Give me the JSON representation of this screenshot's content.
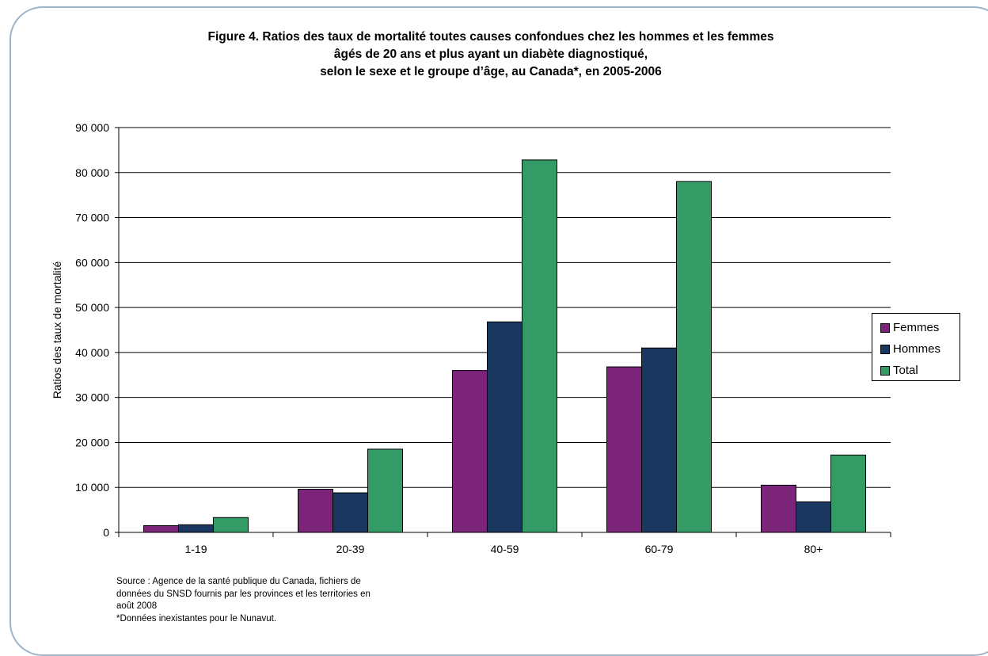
{
  "title_lines": [
    "Figure 4. Ratios des taux de mortalité toutes causes confondues chez les hommes et les femmes",
    "âgés de 20 ans et plus ayant un diabète diagnostiqué,",
    "selon le sexe et le groupe d’âge, au Canada*, en 2005-2006"
  ],
  "source_lines": [
    "Source : Agence de la santé publique du Canada, fichiers de",
    "données du SNSD fournis par les provinces et les territories en",
    "août 2008",
    " *Données inexistantes pour le Nunavut."
  ],
  "chart_data": {
    "type": "bar",
    "title": "Figure 4. Ratios des taux de mortalité toutes causes confondues chez les hommes et les femmes âgés de 20 ans et plus ayant un diabète diagnostiqué, selon le sexe et le groupe d’âge, au Canada*, en 2005-2006",
    "xlabel": "",
    "ylabel": "Ratios des taux de mortalité",
    "categories": [
      "1-19",
      "20-39",
      "40-59",
      "60-79",
      "80+"
    ],
    "ylim": [
      0,
      90000
    ],
    "yticks": [
      0,
      10000,
      20000,
      30000,
      40000,
      50000,
      60000,
      70000,
      80000,
      90000
    ],
    "ytick_labels": [
      "0",
      "10 000",
      "20 000",
      "30 000",
      "40 000",
      "50 000",
      "60 000",
      "70 000",
      "80 000",
      "90 000"
    ],
    "grid": true,
    "legend_position": "right",
    "series": [
      {
        "name": "Femmes",
        "color": "#7b2479",
        "values": [
          1500,
          9600,
          36000,
          36800,
          10500
        ]
      },
      {
        "name": "Hommes",
        "color": "#1a3760",
        "values": [
          1700,
          8800,
          46800,
          41000,
          6800
        ]
      },
      {
        "name": "Total",
        "color": "#349a66",
        "values": [
          3300,
          18500,
          82800,
          78000,
          17200
        ]
      }
    ]
  }
}
